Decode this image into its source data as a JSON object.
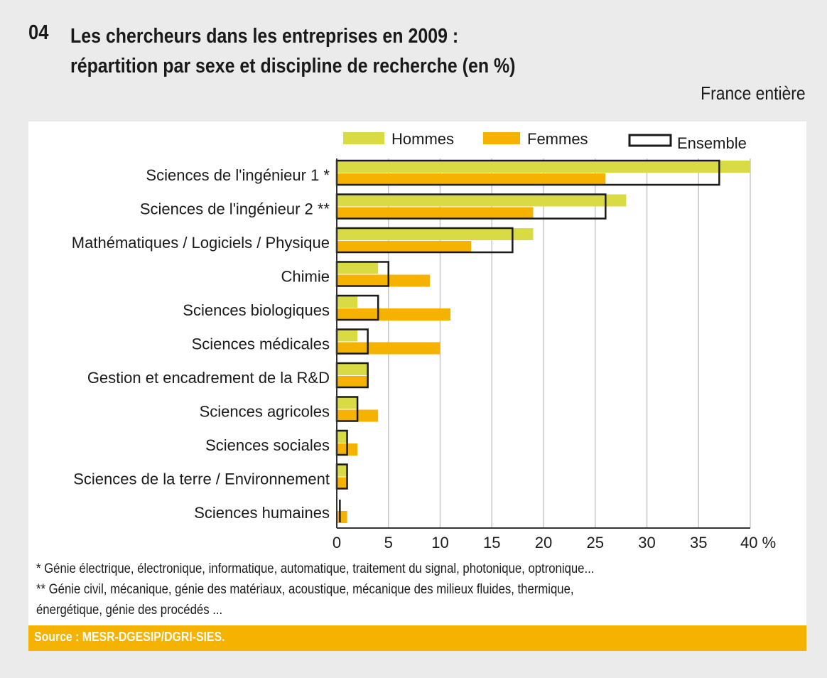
{
  "header": {
    "number": "04",
    "title_line1": "Les chercheurs dans les entreprises en 2009 :",
    "title_line2": "répartition par sexe et discipline de recherche (en %)",
    "scope": "France entière"
  },
  "colors": {
    "hommes": "#d9db45",
    "femmes": "#f6b200",
    "ensemble_outline": "#1a1a1a",
    "grid": "#c8c8c8",
    "source_bar": "#f6b200"
  },
  "chart_data": {
    "type": "bar",
    "orientation": "horizontal",
    "title": "Les chercheurs dans les entreprises en 2009 : répartition par sexe et discipline de recherche (en %)",
    "xlabel": "%",
    "ylabel": "",
    "xlim": [
      0,
      40
    ],
    "xticks": [
      0,
      5,
      10,
      15,
      20,
      25,
      30,
      35,
      40
    ],
    "xtick_labels": [
      "0",
      "5",
      "10",
      "15",
      "20",
      "25",
      "30",
      "35",
      "40 %"
    ],
    "grid": true,
    "legend_position": "top",
    "categories": [
      "Sciences de l'ingénieur 1 *",
      "Sciences de l'ingénieur 2 **",
      "Mathématiques / Logiciels / Physique",
      "Chimie",
      "Sciences biologiques",
      "Sciences médicales",
      "Gestion et encadrement de la R&D",
      "Sciences agricoles",
      "Sciences sociales",
      "Sciences de la terre / Environnement",
      "Sciences humaines"
    ],
    "series": [
      {
        "name": "Hommes",
        "style": "filled",
        "values": [
          40,
          28,
          19,
          4,
          2,
          2,
          3,
          2,
          1,
          1,
          0
        ]
      },
      {
        "name": "Femmes",
        "style": "filled",
        "values": [
          26,
          19,
          13,
          9,
          11,
          10,
          3,
          4,
          2,
          1,
          1
        ]
      },
      {
        "name": "Ensemble",
        "style": "outline",
        "values": [
          37,
          26,
          17,
          5,
          4,
          3,
          3,
          2,
          1,
          1,
          0.3
        ]
      }
    ]
  },
  "footnotes": {
    "note1": "* Génie électrique, électronique, informatique, automatique, traitement du signal, photonique, optronique...",
    "note2_line1": "** Génie civil, mécanique, génie des matériaux, acoustique, mécanique des milieux fluides, thermique,",
    "note2_line2": "énergétique, génie des procédés ..."
  },
  "source": "Source : MESR-DGESIP/DGRI-SIES."
}
